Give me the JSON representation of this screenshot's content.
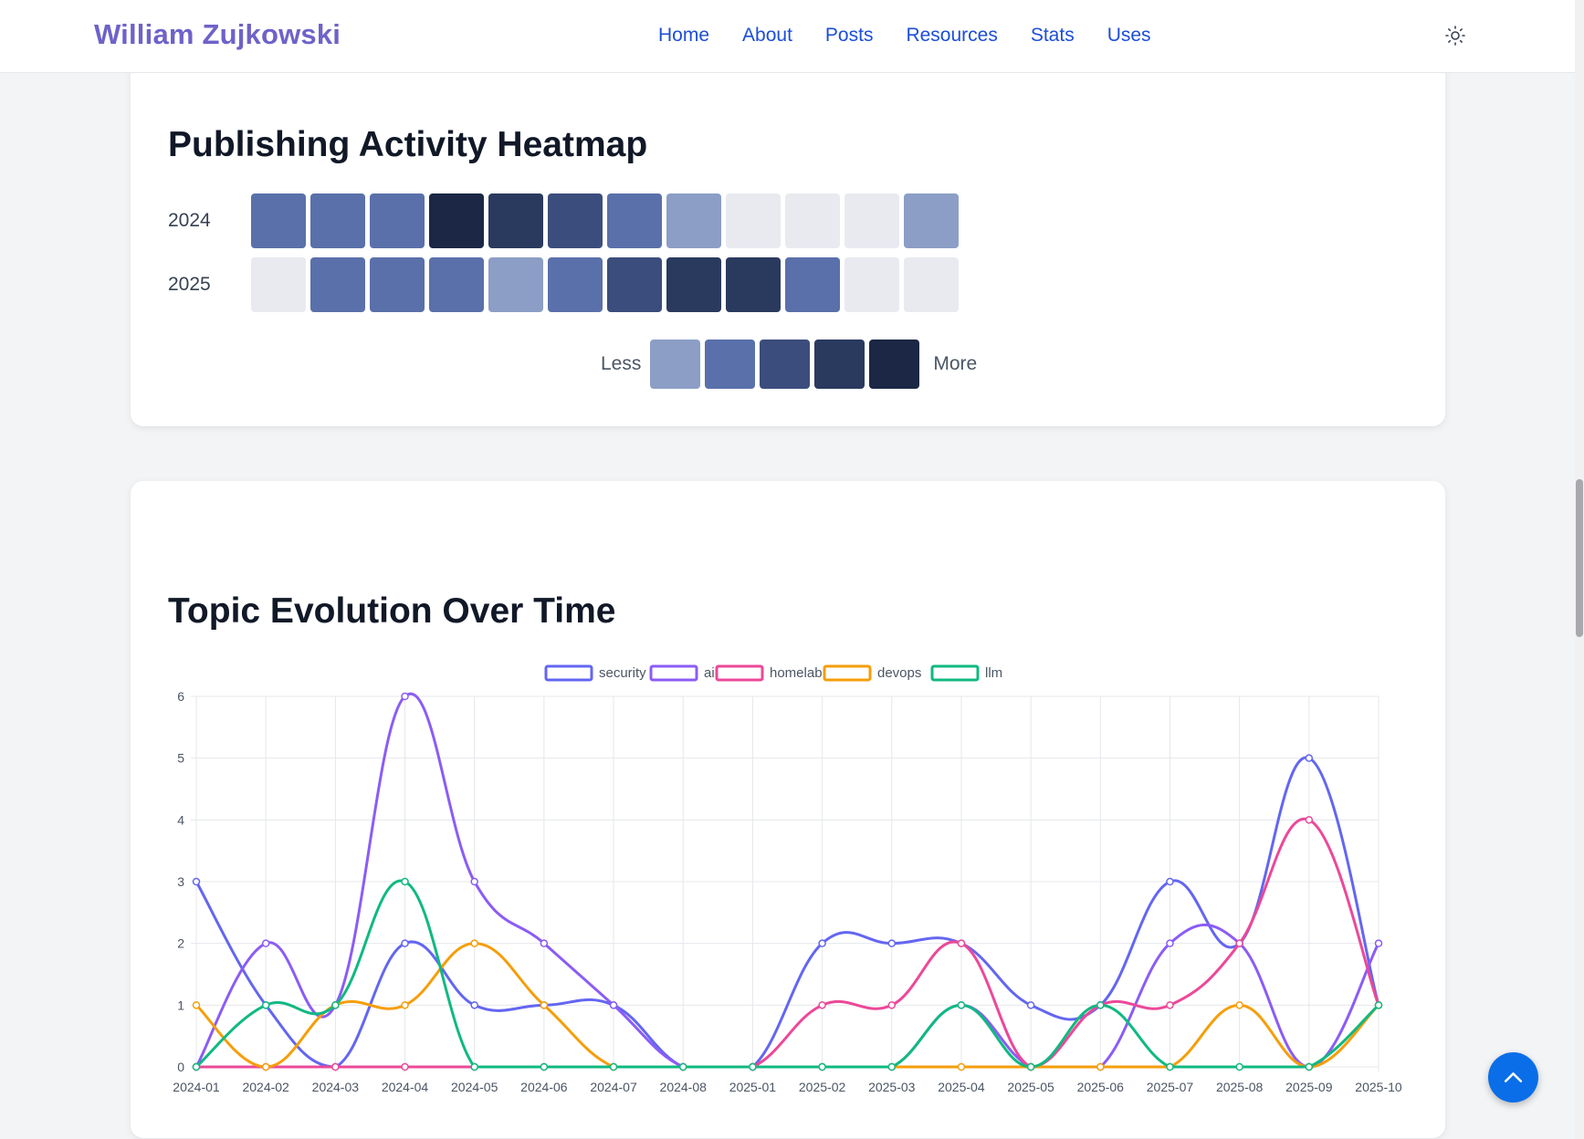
{
  "brand": "William Zujkowski",
  "nav": [
    "Home",
    "About",
    "Posts",
    "Resources",
    "Stats",
    "Uses"
  ],
  "theme_toggle_icon": "sun-icon",
  "heatmap": {
    "title": "Publishing Activity Heatmap",
    "rows": [
      {
        "year": "2024",
        "levels": [
          2,
          2,
          2,
          5,
          4,
          3,
          2,
          1,
          0,
          0,
          0,
          1
        ]
      },
      {
        "year": "2025",
        "levels": [
          0,
          2,
          2,
          2,
          1,
          2,
          3,
          4,
          4,
          2,
          0,
          0
        ]
      }
    ],
    "legend_less": "Less",
    "legend_more": "More",
    "colors": [
      "#e8eaf0",
      "#8c9ec6",
      "#5a70aa",
      "#3b4d7c",
      "#2a3a5f",
      "#1b2744"
    ]
  },
  "topic_chart": {
    "title": "Topic Evolution Over Time"
  },
  "chart_data": {
    "type": "line",
    "categories": [
      "2024-01",
      "2024-02",
      "2024-03",
      "2024-04",
      "2024-05",
      "2024-06",
      "2024-07",
      "2024-08",
      "2025-01",
      "2025-02",
      "2025-03",
      "2025-04",
      "2025-05",
      "2025-06",
      "2025-07",
      "2025-08",
      "2025-09",
      "2025-10"
    ],
    "ylim": [
      0,
      6
    ],
    "yticks": [
      "0",
      "1",
      "2",
      "3",
      "4",
      "5",
      "6"
    ],
    "legend_position": "top",
    "grid": true,
    "series": [
      {
        "name": "security",
        "color": "#6366f1",
        "values": [
          3,
          1,
          0,
          2,
          1,
          1,
          1,
          0,
          0,
          2,
          2,
          2,
          1,
          1,
          3,
          2,
          5,
          1
        ]
      },
      {
        "name": "ai",
        "color": "#8b5cf6",
        "values": [
          0,
          2,
          1,
          6,
          3,
          2,
          1,
          0,
          0,
          0,
          0,
          1,
          0,
          0,
          2,
          2,
          0,
          2
        ]
      },
      {
        "name": "homelab",
        "color": "#ec4899",
        "values": [
          0,
          0,
          0,
          0,
          0,
          0,
          0,
          0,
          0,
          1,
          1,
          2,
          0,
          1,
          1,
          2,
          4,
          1
        ]
      },
      {
        "name": "devops",
        "color": "#f59e0b",
        "values": [
          1,
          0,
          1,
          1,
          2,
          1,
          0,
          0,
          0,
          0,
          0,
          0,
          0,
          0,
          0,
          1,
          0,
          1
        ]
      },
      {
        "name": "llm",
        "color": "#10b981",
        "values": [
          0,
          1,
          1,
          3,
          0,
          0,
          0,
          0,
          0,
          0,
          0,
          1,
          0,
          1,
          0,
          0,
          0,
          1
        ]
      }
    ]
  },
  "scroll_top_icon": "chevron-up-icon"
}
